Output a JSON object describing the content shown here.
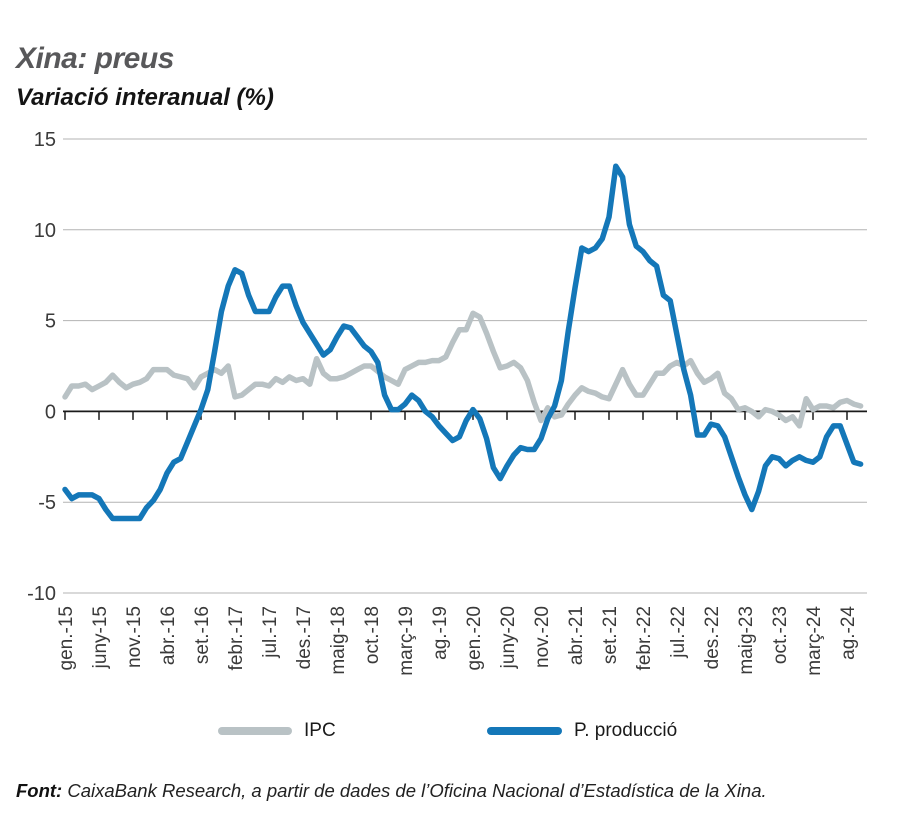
{
  "header": {
    "title": "Xina: preus",
    "subtitle": "Variació interanual (%)"
  },
  "chart_data": {
    "type": "line",
    "title": "Xina: preus",
    "subtitle": "Variació interanual (%)",
    "x_tick_labels": [
      "gen.-15",
      "juny-15",
      "nov.-15",
      "abr.-16",
      "set.-16",
      "febr.-17",
      "jul.-17",
      "des.-17",
      "maig-18",
      "oct.-18",
      "març-19",
      "ag.-19",
      "gen.-20",
      "juny-20",
      "nov.-20",
      "abr.-21",
      "set.-21",
      "febr.-22",
      "jul.-22",
      "des.-22",
      "maig-23",
      "oct.-23",
      "març-24",
      "ag.-24"
    ],
    "x_tick_interval_months": 5,
    "n_points": 118,
    "ylim": [
      -10,
      15
    ],
    "yticks": [
      15,
      10,
      5,
      0,
      -5,
      -10
    ],
    "grid": "horizontal",
    "legend_position": "bottom",
    "series": [
      {
        "name": "IPC",
        "color": "#b9c2c5",
        "values": [
          0.8,
          1.4,
          1.4,
          1.5,
          1.2,
          1.4,
          1.6,
          2.0,
          1.6,
          1.3,
          1.5,
          1.6,
          1.8,
          2.3,
          2.3,
          2.3,
          2.0,
          1.9,
          1.8,
          1.3,
          1.9,
          2.1,
          2.3,
          2.1,
          2.5,
          0.8,
          0.9,
          1.2,
          1.5,
          1.5,
          1.4,
          1.8,
          1.6,
          1.9,
          1.7,
          1.8,
          1.5,
          2.9,
          2.1,
          1.8,
          1.8,
          1.9,
          2.1,
          2.3,
          2.5,
          2.5,
          2.2,
          1.9,
          1.7,
          1.5,
          2.3,
          2.5,
          2.7,
          2.7,
          2.8,
          2.8,
          3.0,
          3.8,
          4.5,
          4.5,
          5.4,
          5.2,
          4.3,
          3.3,
          2.4,
          2.5,
          2.7,
          2.4,
          1.7,
          0.5,
          -0.5,
          0.2,
          -0.3,
          -0.2,
          0.4,
          0.9,
          1.3,
          1.1,
          1.0,
          0.8,
          0.7,
          1.5,
          2.3,
          1.5,
          0.9,
          0.9,
          1.5,
          2.1,
          2.1,
          2.5,
          2.7,
          2.5,
          2.8,
          2.1,
          1.6,
          1.8,
          2.1,
          1.0,
          0.7,
          0.1,
          0.2,
          0.0,
          -0.3,
          0.1,
          0.0,
          -0.2,
          -0.5,
          -0.3,
          -0.8,
          0.7,
          0.1,
          0.3,
          0.3,
          0.2,
          0.5,
          0.6,
          0.4,
          0.3
        ]
      },
      {
        "name": "P. producció",
        "color": "#1477b8",
        "values": [
          -4.3,
          -4.8,
          -4.6,
          -4.6,
          -4.6,
          -4.8,
          -5.4,
          -5.9,
          -5.9,
          -5.9,
          -5.9,
          -5.9,
          -5.3,
          -4.9,
          -4.3,
          -3.4,
          -2.8,
          -2.6,
          -1.7,
          -0.8,
          0.1,
          1.2,
          3.3,
          5.5,
          6.9,
          7.8,
          7.6,
          6.4,
          5.5,
          5.5,
          5.5,
          6.3,
          6.9,
          6.9,
          5.8,
          4.9,
          4.3,
          3.7,
          3.1,
          3.4,
          4.1,
          4.7,
          4.6,
          4.1,
          3.6,
          3.3,
          2.7,
          0.9,
          0.1,
          0.1,
          0.4,
          0.9,
          0.6,
          0.0,
          -0.3,
          -0.8,
          -1.2,
          -1.6,
          -1.4,
          -0.5,
          0.1,
          -0.4,
          -1.5,
          -3.1,
          -3.7,
          -3.0,
          -2.4,
          -2.0,
          -2.1,
          -2.1,
          -1.5,
          -0.4,
          0.3,
          1.7,
          4.4,
          6.8,
          9.0,
          8.8,
          9.0,
          9.5,
          10.7,
          13.5,
          12.9,
          10.3,
          9.1,
          8.8,
          8.3,
          8.0,
          6.4,
          6.1,
          4.2,
          2.3,
          0.9,
          -1.3,
          -1.3,
          -0.7,
          -0.8,
          -1.4,
          -2.5,
          -3.6,
          -4.6,
          -5.4,
          -4.4,
          -3.0,
          -2.5,
          -2.6,
          -3.0,
          -2.7,
          -2.5,
          -2.7,
          -2.8,
          -2.5,
          -1.4,
          -0.8,
          -0.8,
          -1.8,
          -2.8,
          -2.9
        ]
      }
    ],
    "colors": {
      "grid": "#b3b3b3",
      "zero_axis": "#1a1a1a",
      "tick_text": "#3a3a3a"
    }
  },
  "legend": {
    "items": [
      {
        "label": "IPC",
        "color": "#b9c2c5"
      },
      {
        "label": "P. producció",
        "color": "#1477b8"
      }
    ]
  },
  "source": {
    "label": "Font:",
    "text": " CaixaBank Research, a partir de dades de l’Oficina Nacional d’Estadística de la Xina."
  }
}
